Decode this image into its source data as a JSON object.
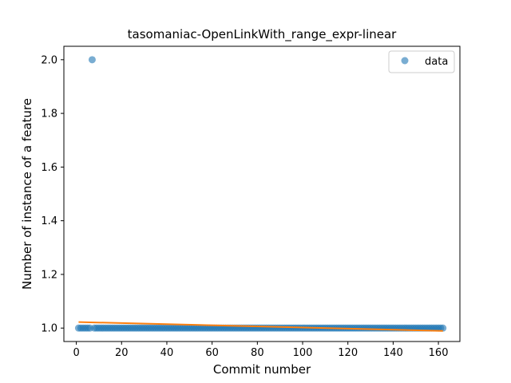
{
  "chart_data": {
    "type": "scatter",
    "title": "tasomaniac-OpenLinkWith_range_expr-linear",
    "xlabel": "Commit number",
    "ylabel": "Number of instance of a feature",
    "xlim": [
      -5.5,
      169.5
    ],
    "ylim": [
      0.95,
      2.05
    ],
    "xticks": [
      0,
      20,
      40,
      60,
      80,
      100,
      120,
      140,
      160
    ],
    "yticks": [
      1.0,
      1.2,
      1.4,
      1.6,
      1.8,
      2.0
    ],
    "xtick_labels": [
      "0",
      "20",
      "40",
      "60",
      "80",
      "100",
      "120",
      "140",
      "160"
    ],
    "ytick_labels": [
      "1.0",
      "1.2",
      "1.4",
      "1.6",
      "1.8",
      "2.0"
    ],
    "grid": false,
    "legend": {
      "position": "top-right",
      "entries": [
        "data"
      ]
    },
    "series": [
      {
        "name": "data",
        "kind": "scatter",
        "color": "#1f77b4",
        "opacity": 0.6,
        "x_start": 1,
        "x_end": 162,
        "y_default": 1,
        "outliers": [
          {
            "x": 7,
            "y": 2
          }
        ]
      },
      {
        "kind": "line",
        "color": "#ff7f0e",
        "points": [
          {
            "x": 1,
            "y": 1.0225
          },
          {
            "x": 162,
            "y": 0.9895
          }
        ]
      }
    ]
  }
}
